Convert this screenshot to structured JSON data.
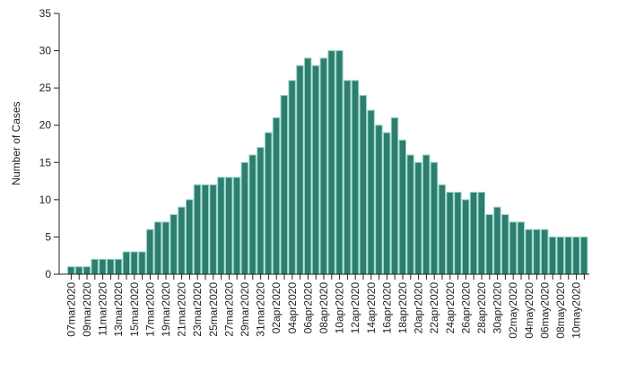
{
  "chart_data": {
    "type": "bar",
    "title": "",
    "xlabel": "",
    "ylabel": "Number of Cases",
    "ylim": [
      0,
      35
    ],
    "yticks": [
      0,
      5,
      10,
      15,
      20,
      25,
      30,
      35
    ],
    "grid": false,
    "legend": null,
    "colors": {
      "bar_fill": "#2e7d6f",
      "bar_stroke": "#8fd3c3",
      "axis": "#222222"
    },
    "categories": [
      "07mar2020",
      "08mar2020",
      "09mar2020",
      "10mar2020",
      "11mar2020",
      "12mar2020",
      "13mar2020",
      "14mar2020",
      "15mar2020",
      "16mar2020",
      "17mar2020",
      "18mar2020",
      "19mar2020",
      "20mar2020",
      "21mar2020",
      "22mar2020",
      "23mar2020",
      "24mar2020",
      "25mar2020",
      "26mar2020",
      "27mar2020",
      "28mar2020",
      "29mar2020",
      "30mar2020",
      "31mar2020",
      "01apr2020",
      "02apr2020",
      "03apr2020",
      "04apr2020",
      "05apr2020",
      "06apr2020",
      "07apr2020",
      "08apr2020",
      "09apr2020",
      "10apr2020",
      "11apr2020",
      "12apr2020",
      "13apr2020",
      "14apr2020",
      "15apr2020",
      "16apr2020",
      "17apr2020",
      "18apr2020",
      "19apr2020",
      "20apr2020",
      "21apr2020",
      "22apr2020",
      "23apr2020",
      "24apr2020",
      "25apr2020",
      "26apr2020",
      "27apr2020",
      "28apr2020",
      "29apr2020",
      "30apr2020",
      "01may2020",
      "02may2020",
      "03may2020",
      "04may2020",
      "05may2020",
      "06may2020",
      "07may2020",
      "08may2020",
      "09may2020",
      "10may2020",
      "11may2020"
    ],
    "labeled_ticks": [
      "07mar2020",
      "09mar2020",
      "11mar2020",
      "13mar2020",
      "15mar2020",
      "17mar2020",
      "19mar2020",
      "21mar2020",
      "23mar2020",
      "25mar2020",
      "27mar2020",
      "29mar2020",
      "31mar2020",
      "02apr2020",
      "04apr2020",
      "06apr2020",
      "08apr2020",
      "10apr2020",
      "12apr2020",
      "14apr2020",
      "16apr2020",
      "18apr2020",
      "20apr2020",
      "22apr2020",
      "24apr2020",
      "26apr2020",
      "28apr2020",
      "30apr2020",
      "02may2020",
      "04may2020",
      "06may2020",
      "08may2020",
      "10may2020"
    ],
    "values": [
      1,
      1,
      1,
      2,
      2,
      2,
      2,
      3,
      3,
      3,
      6,
      7,
      7,
      8,
      9,
      10,
      12,
      12,
      12,
      13,
      13,
      13,
      15,
      16,
      17,
      19,
      21,
      24,
      26,
      28,
      29,
      28,
      29,
      30,
      30,
      26,
      26,
      24,
      22,
      20,
      19,
      21,
      18,
      16,
      15,
      16,
      15,
      12,
      11,
      11,
      10,
      11,
      11,
      8,
      9,
      8,
      7,
      7,
      6,
      6,
      6,
      5,
      5,
      5,
      5,
      5
    ]
  }
}
